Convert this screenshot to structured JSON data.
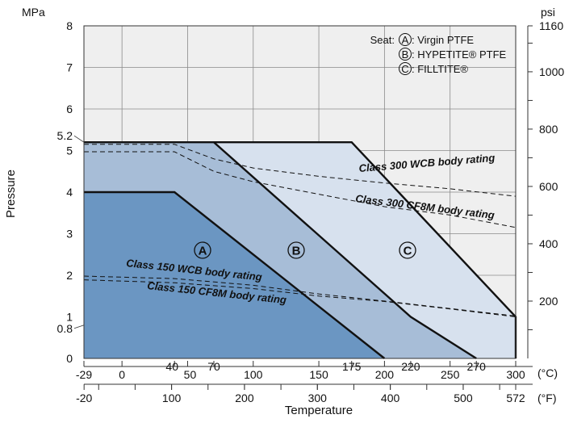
{
  "chart_data": {
    "type": "line",
    "title": "",
    "xlabel": "Temperature",
    "ylabel": "Pressure",
    "x_units": {
      "primary": "(°C)",
      "secondary": "(°F)"
    },
    "y_units": {
      "primary": "MPa",
      "secondary": "psi"
    },
    "xlim_c": [
      -29,
      300
    ],
    "ylim_mpa": [
      0,
      8
    ],
    "x_ticks_c": [
      "-29",
      "0",
      "40",
      "50",
      "70",
      "100",
      "150",
      "175",
      "200",
      "220",
      "250",
      "270",
      "300"
    ],
    "x_ticks_c_values": [
      -29,
      0,
      40,
      50,
      70,
      100,
      150,
      175,
      200,
      220,
      250,
      270,
      300
    ],
    "x_ticks_f": [
      "-20",
      "100",
      "200",
      "300",
      "400",
      "500",
      "572"
    ],
    "x_ticks_f_values": [
      -20,
      100,
      200,
      300,
      400,
      500,
      572
    ],
    "y_ticks_mpa": [
      "0",
      "0.8",
      "1",
      "2",
      "3",
      "4",
      "5",
      "5.2",
      "6",
      "7",
      "8"
    ],
    "y_ticks_mpa_values": [
      0,
      0.8,
      1,
      2,
      3,
      4,
      5,
      5.2,
      6,
      7,
      8
    ],
    "y_ticks_psi": [
      "200",
      "400",
      "600",
      "800",
      "1000",
      "1160"
    ],
    "y_ticks_psi_values": [
      200,
      400,
      600,
      800,
      1000,
      1160
    ],
    "legend": {
      "title": "Seat:",
      "entries": [
        {
          "letter": "A",
          "label": ": Virgin PTFE"
        },
        {
          "letter": "B",
          "label": ": HYPETITE® PTFE"
        },
        {
          "letter": "C",
          "label": ": FILLTITE®"
        }
      ]
    },
    "regions": [
      {
        "letter": "A",
        "color": "#6b96c2",
        "points": [
          [
            -29,
            0
          ],
          [
            -29,
            4
          ],
          [
            40,
            4
          ],
          [
            200,
            0
          ]
        ]
      },
      {
        "letter": "B",
        "color": "#a7bdd7",
        "points": [
          [
            -29,
            0
          ],
          [
            -29,
            5.2
          ],
          [
            70,
            5.2
          ],
          [
            220,
            1
          ],
          [
            270,
            0
          ]
        ]
      },
      {
        "letter": "C",
        "color": "#d7e1ee",
        "points": [
          [
            70,
            0
          ],
          [
            70,
            5.2
          ],
          [
            175,
            5.2
          ],
          [
            300,
            1
          ],
          [
            300,
            0
          ]
        ]
      }
    ],
    "series": [
      {
        "kind": "solid",
        "points": [
          [
            -29,
            4
          ],
          [
            40,
            4
          ],
          [
            200,
            0
          ]
        ]
      },
      {
        "kind": "solid",
        "points": [
          [
            -29,
            5.2
          ],
          [
            70,
            5.2
          ],
          [
            220,
            1
          ],
          [
            270,
            0
          ]
        ]
      },
      {
        "kind": "solid",
        "points": [
          [
            70,
            5.2
          ],
          [
            175,
            5.2
          ],
          [
            300,
            1
          ],
          [
            300,
            0
          ]
        ]
      },
      {
        "kind": "dashed",
        "points": [
          [
            -29,
            5.15
          ],
          [
            40,
            5.15
          ],
          [
            70,
            4.8
          ],
          [
            100,
            4.58
          ],
          [
            150,
            4.38
          ],
          [
            200,
            4.22
          ],
          [
            250,
            4.08
          ],
          [
            300,
            3.9
          ]
        ]
      },
      {
        "kind": "dashed",
        "points": [
          [
            -29,
            4.97
          ],
          [
            40,
            4.97
          ],
          [
            70,
            4.5
          ],
          [
            100,
            4.25
          ],
          [
            150,
            3.95
          ],
          [
            200,
            3.65
          ],
          [
            250,
            3.45
          ],
          [
            300,
            3.15
          ]
        ]
      },
      {
        "kind": "dashed",
        "points": [
          [
            -29,
            1.98
          ],
          [
            40,
            1.92
          ],
          [
            100,
            1.76
          ],
          [
            150,
            1.55
          ],
          [
            200,
            1.38
          ],
          [
            250,
            1.2
          ],
          [
            300,
            1.02
          ]
        ]
      },
      {
        "kind": "dashed",
        "points": [
          [
            -29,
            1.89
          ],
          [
            40,
            1.82
          ],
          [
            100,
            1.68
          ],
          [
            150,
            1.5
          ],
          [
            200,
            1.37
          ],
          [
            250,
            1.19
          ],
          [
            300,
            1.0
          ]
        ]
      }
    ],
    "curve_labels": [
      {
        "text": "Class 300 WCB body rating"
      },
      {
        "text": "Class 300 CF8M body rating"
      },
      {
        "text": "Class 150 WCB body rating"
      },
      {
        "text": "Class 150 CF8M body rating"
      }
    ],
    "grid": true
  }
}
